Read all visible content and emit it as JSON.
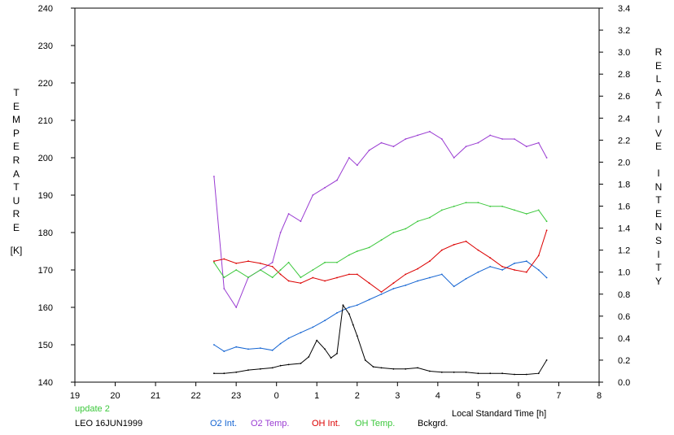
{
  "chart_data": {
    "type": "line",
    "left_axis_label": [
      "T",
      "E",
      "M",
      "P",
      "E",
      "R",
      "A",
      "T",
      "U",
      "R",
      "E"
    ],
    "left_axis_unit": "[K]",
    "right_axis_label": [
      "R",
      "E",
      "L",
      "A",
      "T",
      "I",
      "V",
      "E"
    ],
    "right_axis_label2": [
      "I",
      "N",
      "T",
      "E",
      "N",
      "S",
      "I",
      "T",
      "Y"
    ],
    "xlabel": "Local Standard Time [h]",
    "x_ticks": [
      "19",
      "20",
      "21",
      "22",
      "23",
      "0",
      "1",
      "2",
      "3",
      "4",
      "5",
      "6",
      "7",
      "8"
    ],
    "ylim_left": [
      140,
      240
    ],
    "y_ticks_left": [
      "140",
      "150",
      "160",
      "170",
      "180",
      "190",
      "200",
      "210",
      "220",
      "230",
      "240"
    ],
    "ylim_right": [
      0.0,
      3.4
    ],
    "y_ticks_right": [
      "0.0",
      "0.2",
      "0.4",
      "0.6",
      "0.8",
      "1.0",
      "1.2",
      "1.4",
      "1.6",
      "1.8",
      "2.0",
      "2.2",
      "2.4",
      "2.6",
      "2.8",
      "3.0",
      "3.2",
      "3.4"
    ],
    "update_note": "update 2",
    "station": "LEO 16JUN1999",
    "grid": false,
    "legend_position": "bottom",
    "series": [
      {
        "name": "O2 Int.",
        "axis": "right",
        "color": "#1464d2",
        "x": [
          22.45,
          22.7,
          23.0,
          23.3,
          23.6,
          23.9,
          24.1,
          24.3,
          24.6,
          24.9,
          25.2,
          25.5,
          25.8,
          26.0,
          26.3,
          26.6,
          26.9,
          27.2,
          27.5,
          27.8,
          28.1,
          28.4,
          28.7,
          29.0,
          29.3,
          29.6,
          29.9,
          30.2,
          30.5,
          30.7
        ],
        "y": [
          0.34,
          0.28,
          0.32,
          0.3,
          0.31,
          0.29,
          0.35,
          0.4,
          0.45,
          0.5,
          0.56,
          0.63,
          0.68,
          0.7,
          0.75,
          0.8,
          0.85,
          0.88,
          0.92,
          0.95,
          0.98,
          0.87,
          0.94,
          1.0,
          1.05,
          1.02,
          1.08,
          1.1,
          1.02,
          0.95
        ]
      },
      {
        "name": "O2 Temp.",
        "axis": "left",
        "color": "#9a3cd2",
        "x": [
          22.45,
          22.7,
          23.0,
          23.3,
          23.6,
          23.9,
          24.1,
          24.3,
          24.6,
          24.9,
          25.2,
          25.5,
          25.8,
          26.0,
          26.3,
          26.6,
          26.9,
          27.2,
          27.5,
          27.8,
          28.1,
          28.4,
          28.7,
          29.0,
          29.3,
          29.6,
          29.9,
          30.2,
          30.5,
          30.7
        ],
        "y": [
          195,
          165,
          160,
          168,
          170,
          172,
          180,
          185,
          183,
          190,
          192,
          194,
          200,
          198,
          202,
          204,
          203,
          205,
          206,
          207,
          205,
          200,
          203,
          204,
          206,
          205,
          205,
          203,
          204,
          200
        ]
      },
      {
        "name": "OH Int.",
        "axis": "right",
        "color": "#dc0000",
        "x": [
          22.45,
          22.7,
          23.0,
          23.3,
          23.6,
          23.9,
          24.1,
          24.3,
          24.6,
          24.9,
          25.2,
          25.5,
          25.8,
          26.0,
          26.3,
          26.6,
          26.9,
          27.2,
          27.5,
          27.8,
          28.1,
          28.4,
          28.7,
          29.0,
          29.3,
          29.6,
          29.9,
          30.2,
          30.5,
          30.7
        ],
        "y": [
          1.1,
          1.12,
          1.08,
          1.1,
          1.08,
          1.05,
          0.98,
          0.92,
          0.9,
          0.95,
          0.92,
          0.95,
          0.98,
          0.98,
          0.9,
          0.82,
          0.9,
          0.98,
          1.03,
          1.1,
          1.2,
          1.25,
          1.28,
          1.2,
          1.13,
          1.05,
          1.02,
          1.0,
          1.15,
          1.38
        ]
      },
      {
        "name": "OH Temp.",
        "axis": "left",
        "color": "#3cc83c",
        "x": [
          22.45,
          22.7,
          23.0,
          23.3,
          23.6,
          23.9,
          24.1,
          24.3,
          24.6,
          24.9,
          25.2,
          25.5,
          25.8,
          26.0,
          26.3,
          26.6,
          26.9,
          27.2,
          27.5,
          27.8,
          28.1,
          28.4,
          28.7,
          29.0,
          29.3,
          29.6,
          29.9,
          30.2,
          30.5,
          30.7
        ],
        "y": [
          172,
          168,
          170,
          168,
          170,
          168,
          170,
          172,
          168,
          170,
          172,
          172,
          174,
          175,
          176,
          178,
          180,
          181,
          183,
          184,
          186,
          187,
          188,
          188,
          187,
          187,
          186,
          185,
          186,
          183
        ]
      },
      {
        "name": "Bckgrd.",
        "axis": "right",
        "color": "#000000",
        "x": [
          22.45,
          22.7,
          23.0,
          23.3,
          23.6,
          23.9,
          24.1,
          24.3,
          24.6,
          24.8,
          25.0,
          25.2,
          25.35,
          25.5,
          25.65,
          25.8,
          25.9,
          26.0,
          26.2,
          26.4,
          26.6,
          26.9,
          27.2,
          27.5,
          27.8,
          28.1,
          28.4,
          28.7,
          29.0,
          29.3,
          29.6,
          29.9,
          30.2,
          30.5,
          30.7
        ],
        "y": [
          0.08,
          0.08,
          0.09,
          0.11,
          0.12,
          0.13,
          0.15,
          0.16,
          0.17,
          0.23,
          0.38,
          0.3,
          0.22,
          0.26,
          0.7,
          0.62,
          0.52,
          0.42,
          0.2,
          0.14,
          0.13,
          0.12,
          0.12,
          0.13,
          0.1,
          0.09,
          0.09,
          0.09,
          0.08,
          0.08,
          0.08,
          0.07,
          0.07,
          0.08,
          0.2
        ]
      }
    ]
  }
}
